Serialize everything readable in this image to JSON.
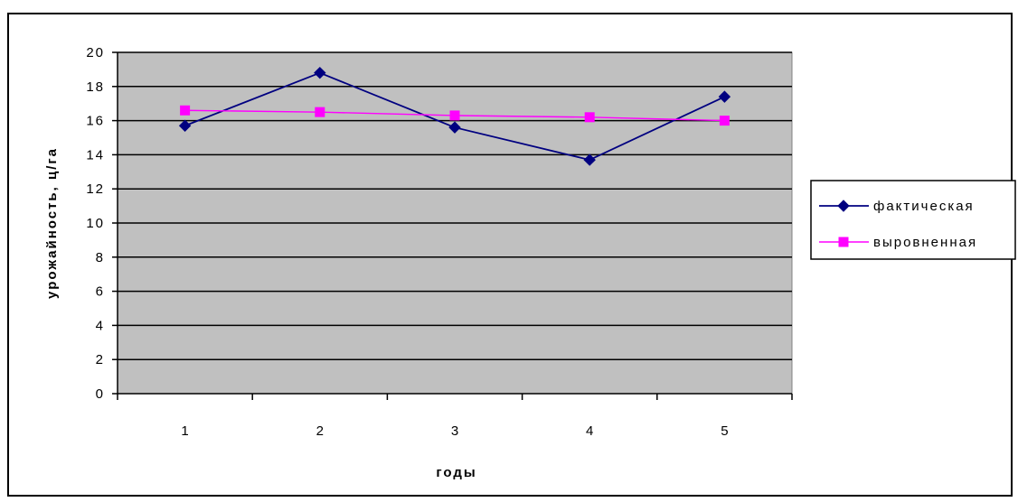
{
  "chart_data": {
    "type": "line",
    "categories": [
      "1",
      "2",
      "3",
      "4",
      "5"
    ],
    "series": [
      {
        "name": "фактическая",
        "values": [
          15.7,
          18.8,
          15.6,
          13.7,
          17.4
        ],
        "color": "#000080",
        "marker": "diamond"
      },
      {
        "name": "выровненная",
        "values": [
          16.6,
          16.5,
          16.3,
          16.2,
          16.0
        ],
        "color": "#FF00FF",
        "marker": "square"
      }
    ],
    "title": "",
    "xlabel": "годы",
    "ylabel": "урожайность, ц/га",
    "ylim": [
      0,
      20
    ],
    "yticks": [
      "0",
      "2",
      "4",
      "6",
      "8",
      "10",
      "12",
      "14",
      "16",
      "18",
      "20"
    ],
    "grid": true,
    "plot_background": "#C0C0C0",
    "legend": "right"
  }
}
